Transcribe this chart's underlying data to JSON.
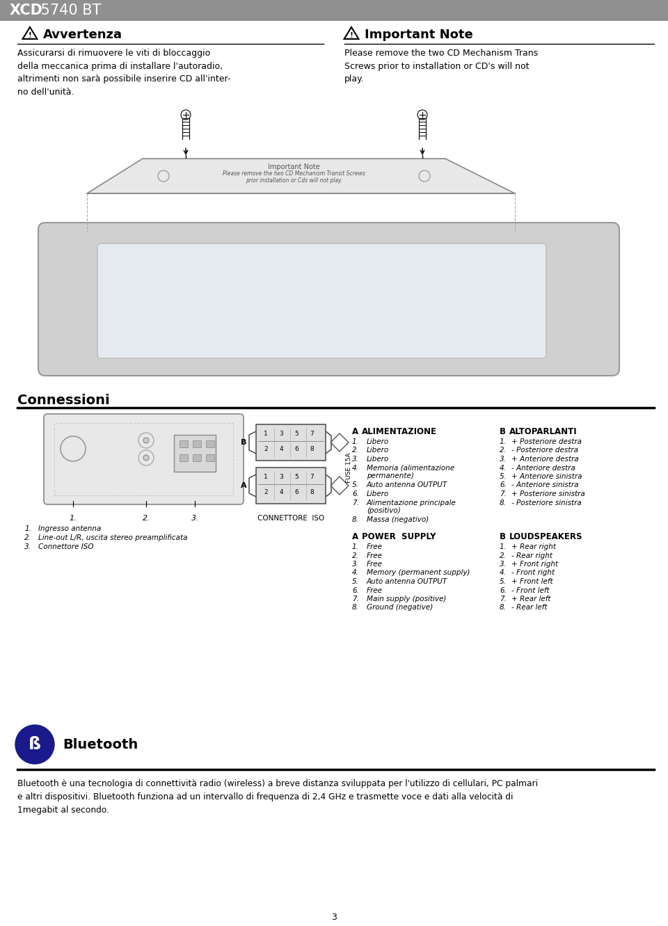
{
  "page_bg": "#ffffff",
  "header_bg": "#888888",
  "warning_title_it": "Avvertenza",
  "warning_body_it": "Assicurarsi di rimuovere le viti di bloccaggio\ndella meccanica prima di installare l'autoradio,\naltrimenti non sarà possibile inserire CD all'inter-\nno dell'unità.",
  "warning_title_en": "Important Note",
  "warning_body_en": "Please remove the two CD Mechanism Trans\nScrews prior to installation or CD's will not\nplay.",
  "section_connessioni": "Connessioni",
  "connettore_iso_label": "CONNETTORE  ISO",
  "fuse_label": "FUSE 15A",
  "connector_desc_left": [
    "Ingresso antenna",
    "Line-out L/R, uscita stereo preamplificata",
    "Connettore ISO"
  ],
  "col_A_header": "A",
  "col_A_title": "ALIMENTAZIONE",
  "col_A_items_num": [
    "1.",
    "2.",
    "3.",
    "4.",
    "5.",
    "6.",
    "7.",
    "8."
  ],
  "col_A_items_txt": [
    "Libero",
    "Libero",
    "Libero",
    "Memoria (alimentazione\npermanente)",
    "Auto antenna OUTPUT",
    "Libero",
    "Alimentazione principale\n(positivo)",
    "Massa (negativo)"
  ],
  "col_B_header": "B",
  "col_B_title": "ALTOPARLANTI",
  "col_B_items_num": [
    "1.",
    "2.",
    "3.",
    "4.",
    "5.",
    "6.",
    "7.",
    "8."
  ],
  "col_B_items_txt": [
    "+ Posteriore destra",
    "- Posteriore destra",
    "+ Anteriore destra",
    "- Anteriore destra",
    "+ Anteriore sinistra",
    "- Anteriore sinistra",
    "+ Posteriore sinistra",
    "- Posteriore sinistra"
  ],
  "col_A_en_header": "A",
  "col_A_en_title": "POWER  SUPPLY",
  "col_A_en_items_num": [
    "1.",
    "2.",
    "3.",
    "4.",
    "5.",
    "6.",
    "7.",
    "8."
  ],
  "col_A_en_items_txt": [
    "Free",
    "Free",
    "Free",
    "Memory (permanent supply)",
    "Auto antenna OUTPUT",
    "Free",
    "Main supply (positive)",
    "Ground (negative)"
  ],
  "col_B_en_header": "B",
  "col_B_en_title": "LOUDSPEAKERS",
  "col_B_en_items_num": [
    "1.",
    "2.",
    "3.",
    "4.",
    "5.",
    "6.",
    "7.",
    "8."
  ],
  "col_B_en_items_txt": [
    "+ Rear right",
    "- Rear right",
    "+ Front right",
    "- Front right",
    "+ Front left",
    "- Front left",
    "+ Rear left",
    "- Rear left"
  ],
  "bluetooth_title": "Bluetooth",
  "bluetooth_body": "Bluetooth è una tecnologia di connettività radio (wireless) a breve distanza sviluppata per l'utilizzo di cellulari, PC palmari\ne altri dispositivi. Bluetooth funziona ad un intervallo di frequenza di 2,4 GHz e trasmette voce e dati alla velocità di\n1megabit al secondo.",
  "page_number": "3",
  "note_line1": "Important Note",
  "note_line2": "Please remove the two CD Mechanism Transit Screws",
  "note_line3": "prior installation or Cds will not play."
}
